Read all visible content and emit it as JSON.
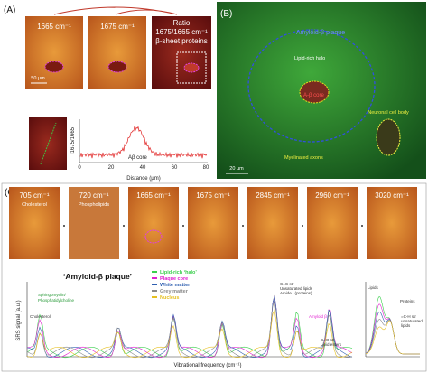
{
  "panel_a": {
    "label": "(A)",
    "image_1": "1665 cm⁻¹",
    "image_2": "1675 cm⁻¹",
    "ratio_title": "Ratio",
    "ratio_line": "1675/1665 cm⁻¹",
    "ratio_subtitle": "β-sheet proteins",
    "scale_bar": "50 µm",
    "profile_label": "Aβ core",
    "x_axis": "Distance (µm)",
    "y_axis": "I1675/1665",
    "x_ticks": [
      "0",
      "20",
      "40",
      "60",
      "80"
    ]
  },
  "panel_b": {
    "label": "(B)",
    "plaque": "Amyloid-β plaque",
    "halo": "Lipid-rich halo",
    "core": "A-β core",
    "neuron": "Neuronal cell body",
    "axons": "Myelinated axons",
    "scale_bar": "20 µm"
  },
  "panel_c": {
    "label": "(C)",
    "images": [
      {
        "label": "705 cm⁻¹",
        "sub": "Cholesterol"
      },
      {
        "label": "720 cm⁻¹",
        "sub": "Phospholipids"
      },
      {
        "label": "1665 cm⁻¹"
      },
      {
        "label": "1675 cm⁻¹"
      },
      {
        "label": "2845 cm⁻¹"
      },
      {
        "label": "2960 cm⁻¹"
      },
      {
        "label": "3020 cm⁻¹"
      }
    ],
    "plaque_title": "‘Amyloid-β plaque’",
    "legend": [
      {
        "name": "Lipid-rich ‘halo’",
        "color": "#3ccf4e"
      },
      {
        "name": "Plaque core",
        "color": "#e020d0"
      },
      {
        "name": "White matter",
        "color": "#2f5fb0"
      },
      {
        "name": "Grey matter",
        "color": "#8a8a8a"
      },
      {
        "name": "Nucleus",
        "color": "#e6c020"
      }
    ],
    "annotations": {
      "sphingo": "Sphingomyelin/",
      "pc": "Phosphatidylcholine",
      "chol": "Cholesterol",
      "cc": "C=C str",
      "unsat": "Unsaturated lipids",
      "amide": "Amide I (proteins)",
      "abeta": "Amyloid β",
      "co": "C=O str",
      "esters": "Lipid esters",
      "lipids": "Lipids",
      "proteins": "Proteins",
      "ch": "=C-H str",
      "unsat2": "unsaturated",
      "lipids2": "lipids"
    },
    "y_axis": "SRS signal (a.u.)",
    "x_axis": "Vibrational frequency (cm⁻¹)"
  }
}
